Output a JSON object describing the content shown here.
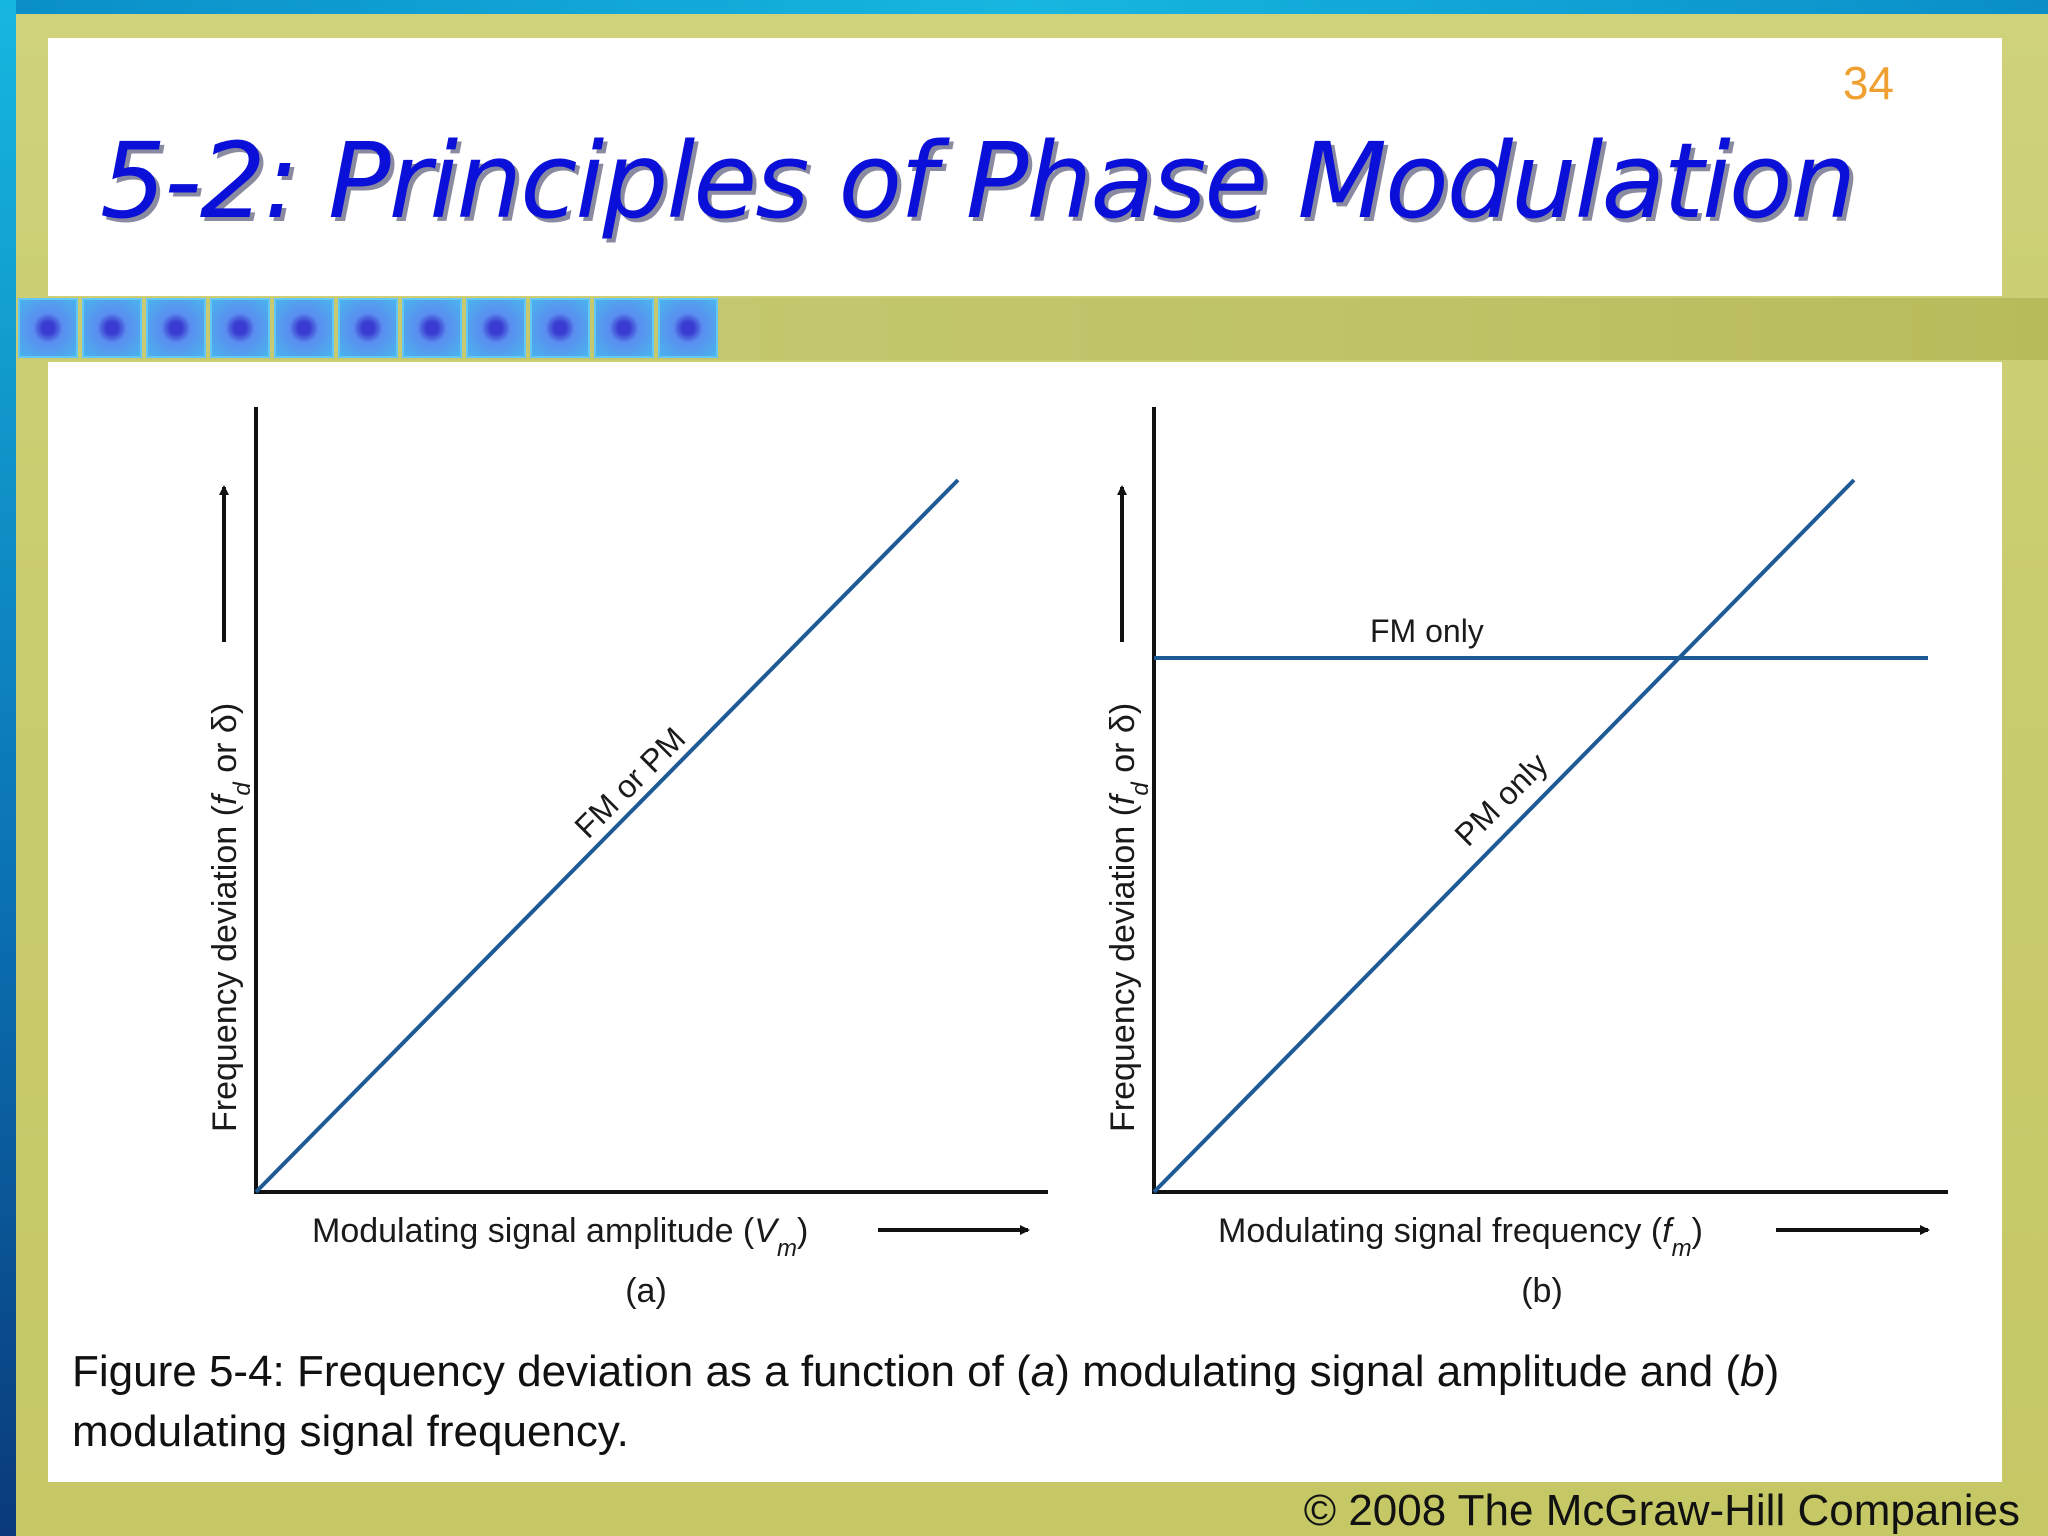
{
  "slide": {
    "number": "34",
    "title": "5-2: Principles of Phase Modulation",
    "footer": "© 2008 The McGraw-Hill Companies",
    "colors": {
      "title": "#0a10d8",
      "number": "#f0a030",
      "background": "#c9cc6e",
      "curve": "#1e5a96"
    }
  },
  "figure": {
    "caption": "Figure 5-4: Frequency deviation as a function of (a) modulating signal amplitude and (b) modulating signal frequency.",
    "panel_a": {
      "ylabel": "Frequency deviation (fd or δ)",
      "ylabel_main": "Frequency deviation (",
      "ylabel_var": "f",
      "ylabel_sub": "d",
      "ylabel_rest": " or δ)",
      "xlabel": "Modulating signal amplitude (Vm)",
      "xlabel_main": "Modulating signal amplitude (",
      "xlabel_var": "V",
      "xlabel_sub": "m",
      "xlabel_close": ")",
      "tag": "(a)",
      "line_label": "FM or PM"
    },
    "panel_b": {
      "ylabel": "Frequency deviation (fd or δ)",
      "ylabel_main": "Frequency deviation (",
      "ylabel_var": "f",
      "ylabel_sub": "d",
      "ylabel_rest": " or δ)",
      "xlabel": "Modulating signal frequency (fm)",
      "xlabel_main": "Modulating signal frequency (",
      "xlabel_var": "f",
      "xlabel_sub": "m",
      "xlabel_close": ")",
      "tag": "(b)",
      "fm_label": "FM only",
      "pm_label": "PM only"
    }
  },
  "chart_data": [
    {
      "type": "line",
      "title": "(a)",
      "xlabel": "Modulating signal amplitude (Vm)",
      "ylabel": "Frequency deviation (fd or δ)",
      "series": [
        {
          "name": "FM or PM",
          "x": [
            0,
            1
          ],
          "y": [
            0,
            1
          ]
        }
      ]
    },
    {
      "type": "line",
      "title": "(b)",
      "xlabel": "Modulating signal frequency (fm)",
      "ylabel": "Frequency deviation (fd or δ)",
      "series": [
        {
          "name": "FM only",
          "x": [
            0,
            1
          ],
          "y": [
            0.75,
            0.75
          ]
        },
        {
          "name": "PM only",
          "x": [
            0,
            1
          ],
          "y": [
            0,
            1
          ]
        }
      ]
    }
  ]
}
